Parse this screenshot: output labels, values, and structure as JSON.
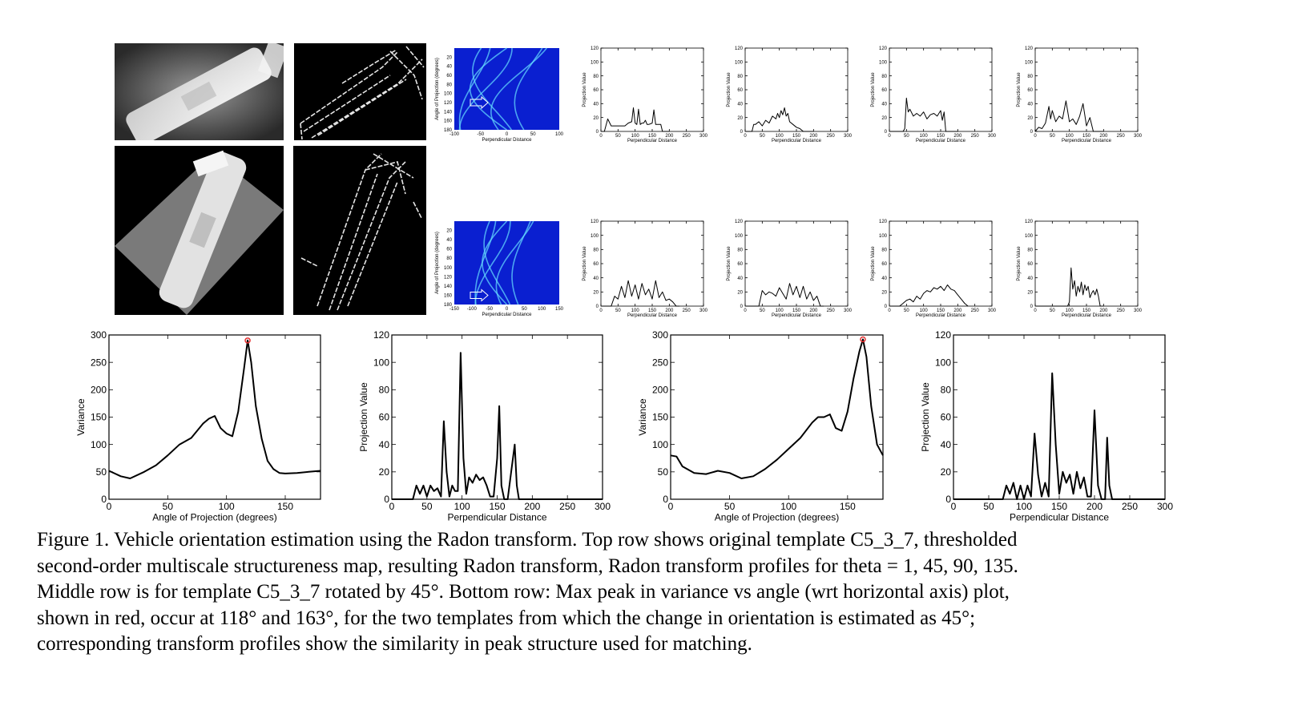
{
  "figure": {
    "caption_lines": [
      "Figure 1. Vehicle orientation estimation using the Radon transform. Top row shows original template C5_3_7, thresholded",
      "second-order multiscale structureness map, resulting Radon transform, Radon transform profiles for theta = 1, 45, 90, 135.",
      "Middle row is for template C5_3_7 rotated by 45°. Bottom row: Max peak in variance vs angle (wrt horizontal axis) plot,",
      "shown in red, occur at 118° and 163°, for the two templates from which the change in orientation is estimated as 45°;",
      "corresponding transform profiles show the similarity in peak structure used for matching."
    ]
  },
  "colors": {
    "peak_marker": "#e53030",
    "heatmap_bg": "#0a1fd0",
    "heatmap_ridge": "#66e0ff"
  },
  "chart_data": [
    {
      "id": "radon-top",
      "type": "heatmap",
      "xlabel": "Perpendicular Distance",
      "ylabel": "Angle of Projection (degrees)",
      "xticks": [
        "-100",
        "-50",
        "0",
        "50",
        "100"
      ],
      "yticks": [
        "20",
        "40",
        "60",
        "80",
        "100",
        "120",
        "140",
        "160",
        "180"
      ],
      "xlim": [
        -100,
        100
      ],
      "ylim": [
        0,
        180
      ]
    },
    {
      "id": "radon-mid",
      "type": "heatmap",
      "xlabel": "Perpendicular Distance",
      "ylabel": "Angle of Projection (degrees)",
      "xticks": [
        "-150",
        "-100",
        "-50",
        "0",
        "50",
        "100",
        "150"
      ],
      "yticks": [
        "20",
        "40",
        "60",
        "80",
        "100",
        "120",
        "140",
        "160",
        "180"
      ],
      "xlim": [
        -150,
        150
      ],
      "ylim": [
        0,
        180
      ]
    },
    {
      "id": "p-top-1",
      "type": "line",
      "xlabel": "Perpendicular Distance",
      "ylabel": "Projection Value",
      "xlim": [
        0,
        300
      ],
      "ylim": [
        0,
        120
      ],
      "xticks": [
        "0",
        "50",
        "100",
        "150",
        "200",
        "250",
        "300"
      ],
      "yticks": [
        "0",
        "20",
        "40",
        "60",
        "80",
        "100",
        "120"
      ],
      "x": [
        0,
        10,
        20,
        30,
        40,
        50,
        60,
        70,
        80,
        90,
        95,
        100,
        105,
        110,
        115,
        120,
        125,
        130,
        135,
        140,
        150,
        155,
        160,
        165,
        170,
        175,
        180,
        190,
        200
      ],
      "y": [
        0,
        0,
        18,
        8,
        8,
        8,
        8,
        8,
        12,
        14,
        34,
        12,
        10,
        32,
        10,
        12,
        12,
        16,
        10,
        10,
        12,
        31,
        10,
        10,
        10,
        10,
        0,
        0,
        0
      ]
    },
    {
      "id": "p-top-2",
      "type": "line",
      "xlabel": "Perpendicular Distance",
      "ylabel": "Projection Value",
      "xlim": [
        0,
        300
      ],
      "ylim": [
        0,
        120
      ],
      "xticks": [
        "0",
        "50",
        "100",
        "150",
        "200",
        "250",
        "300"
      ],
      "yticks": [
        "0",
        "20",
        "40",
        "60",
        "80",
        "100",
        "120"
      ],
      "x": [
        0,
        20,
        25,
        30,
        40,
        50,
        60,
        70,
        80,
        90,
        95,
        100,
        105,
        110,
        115,
        120,
        125,
        130,
        140,
        150,
        160,
        170,
        180,
        190,
        200
      ],
      "y": [
        0,
        0,
        10,
        10,
        14,
        8,
        16,
        12,
        22,
        18,
        26,
        20,
        30,
        24,
        34,
        22,
        26,
        14,
        10,
        6,
        4,
        0,
        0,
        0,
        0
      ]
    },
    {
      "id": "p-top-3",
      "type": "line",
      "xlabel": "Perpendicular Distance",
      "ylabel": "Projection Value",
      "xlim": [
        0,
        300
      ],
      "ylim": [
        0,
        120
      ],
      "xticks": [
        "0",
        "50",
        "100",
        "150",
        "200",
        "250",
        "300"
      ],
      "yticks": [
        "0",
        "20",
        "40",
        "60",
        "80",
        "100",
        "120"
      ],
      "x": [
        0,
        40,
        45,
        50,
        55,
        60,
        70,
        80,
        90,
        100,
        110,
        120,
        130,
        140,
        150,
        155,
        160,
        165,
        170,
        180,
        190,
        200
      ],
      "y": [
        0,
        0,
        4,
        48,
        28,
        32,
        22,
        26,
        22,
        28,
        18,
        24,
        26,
        22,
        30,
        16,
        28,
        0,
        0,
        0,
        0,
        0
      ]
    },
    {
      "id": "p-top-4",
      "type": "line",
      "xlabel": "Perpendicular Distance",
      "ylabel": "Projection Value",
      "xlim": [
        0,
        300
      ],
      "ylim": [
        0,
        120
      ],
      "xticks": [
        "0",
        "50",
        "100",
        "150",
        "200",
        "250",
        "300"
      ],
      "yticks": [
        "0",
        "20",
        "40",
        "60",
        "80",
        "100",
        "120"
      ],
      "x": [
        0,
        10,
        20,
        30,
        40,
        45,
        50,
        60,
        70,
        80,
        90,
        100,
        110,
        120,
        130,
        140,
        150,
        160,
        170,
        180,
        190,
        200
      ],
      "y": [
        0,
        6,
        4,
        12,
        36,
        18,
        30,
        14,
        22,
        18,
        44,
        14,
        18,
        10,
        22,
        40,
        8,
        20,
        0,
        0,
        0,
        0
      ]
    },
    {
      "id": "p-mid-1",
      "type": "line",
      "xlabel": "Perpendicular Distance",
      "ylabel": "Projection Value",
      "xlim": [
        0,
        300
      ],
      "ylim": [
        0,
        120
      ],
      "xticks": [
        "0",
        "50",
        "100",
        "150",
        "200",
        "250",
        "300"
      ],
      "yticks": [
        "0",
        "20",
        "40",
        "60",
        "80",
        "100",
        "120"
      ],
      "x": [
        0,
        30,
        40,
        50,
        60,
        70,
        80,
        90,
        100,
        110,
        120,
        130,
        140,
        150,
        160,
        170,
        180,
        190,
        200,
        210,
        220,
        230
      ],
      "y": [
        0,
        0,
        14,
        10,
        28,
        12,
        36,
        14,
        30,
        10,
        32,
        16,
        24,
        10,
        36,
        12,
        20,
        8,
        10,
        6,
        0,
        0
      ]
    },
    {
      "id": "p-mid-2",
      "type": "line",
      "xlabel": "Perpendicular Distance",
      "ylabel": "Projection Value",
      "xlim": [
        0,
        300
      ],
      "ylim": [
        0,
        120
      ],
      "xticks": [
        "0",
        "50",
        "100",
        "150",
        "200",
        "250",
        "300"
      ],
      "yticks": [
        "0",
        "20",
        "40",
        "60",
        "80",
        "100",
        "120"
      ],
      "x": [
        0,
        40,
        50,
        60,
        70,
        80,
        90,
        100,
        110,
        120,
        130,
        140,
        150,
        160,
        170,
        180,
        190,
        200,
        210,
        220,
        230
      ],
      "y": [
        0,
        0,
        22,
        16,
        20,
        18,
        14,
        26,
        18,
        10,
        32,
        16,
        28,
        12,
        28,
        10,
        20,
        8,
        14,
        0,
        0
      ]
    },
    {
      "id": "p-mid-3",
      "type": "line",
      "xlabel": "Perpendicular Distance",
      "ylabel": "Projection Value",
      "xlim": [
        0,
        300
      ],
      "ylim": [
        0,
        120
      ],
      "xticks": [
        "0",
        "50",
        "100",
        "150",
        "200",
        "250",
        "300"
      ],
      "yticks": [
        "0",
        "20",
        "40",
        "60",
        "80",
        "100",
        "120"
      ],
      "x": [
        0,
        30,
        40,
        50,
        60,
        70,
        80,
        90,
        100,
        110,
        120,
        130,
        140,
        150,
        160,
        170,
        180,
        190,
        200,
        210,
        220,
        230
      ],
      "y": [
        0,
        0,
        4,
        8,
        10,
        6,
        14,
        10,
        18,
        22,
        20,
        26,
        24,
        28,
        22,
        30,
        24,
        22,
        16,
        10,
        4,
        0
      ]
    },
    {
      "id": "p-mid-4",
      "type": "line",
      "xlabel": "Perpendicular Distance",
      "ylabel": "Projection Value",
      "xlim": [
        0,
        300
      ],
      "ylim": [
        0,
        120
      ],
      "xticks": [
        "0",
        "50",
        "100",
        "150",
        "200",
        "250",
        "300"
      ],
      "yticks": [
        "0",
        "20",
        "40",
        "60",
        "80",
        "100",
        "120"
      ],
      "x": [
        0,
        95,
        100,
        105,
        110,
        115,
        120,
        125,
        130,
        135,
        140,
        145,
        150,
        155,
        160,
        165,
        170,
        175,
        180,
        185,
        190,
        200
      ],
      "y": [
        0,
        0,
        6,
        54,
        24,
        36,
        14,
        28,
        20,
        34,
        16,
        30,
        22,
        28,
        12,
        18,
        22,
        16,
        24,
        14,
        0,
        0
      ]
    },
    {
      "id": "var-1",
      "type": "line",
      "xlabel": "Angle of Projection (degrees)",
      "ylabel": "Variance",
      "xlim": [
        0,
        180
      ],
      "ylim": [
        0,
        300
      ],
      "xticks": [
        "0",
        "50",
        "100",
        "150"
      ],
      "yticks": [
        "0",
        "50",
        "100",
        "150",
        "200",
        "250",
        "300"
      ],
      "x": [
        0,
        10,
        18,
        30,
        40,
        50,
        60,
        70,
        80,
        85,
        90,
        95,
        100,
        105,
        110,
        115,
        118,
        121,
        125,
        130,
        135,
        140,
        145,
        150,
        160,
        170,
        180
      ],
      "y": [
        52,
        42,
        38,
        50,
        62,
        80,
        100,
        112,
        138,
        147,
        152,
        130,
        120,
        115,
        160,
        240,
        290,
        250,
        170,
        110,
        70,
        55,
        48,
        47,
        48,
        50,
        52
      ],
      "peak": {
        "x": 118,
        "y": 290
      }
    },
    {
      "id": "prof-1",
      "type": "line",
      "xlabel": "Perpendicular Distance",
      "ylabel": "Projection Value",
      "xlim": [
        0,
        300
      ],
      "ylim": [
        0,
        120
      ],
      "xticks": [
        "0",
        "50",
        "100",
        "150",
        "200",
        "250",
        "300"
      ],
      "yticks": [
        "0",
        "20",
        "40",
        "60",
        "80",
        "100",
        "120"
      ],
      "x": [
        0,
        30,
        35,
        40,
        45,
        50,
        55,
        60,
        65,
        70,
        74,
        78,
        82,
        86,
        90,
        94,
        98,
        102,
        106,
        110,
        115,
        120,
        125,
        130,
        135,
        140,
        145,
        150,
        153,
        156,
        160,
        165,
        170,
        175,
        178,
        181,
        185,
        300
      ],
      "y": [
        0,
        0,
        10,
        4,
        10,
        2,
        10,
        6,
        8,
        2,
        57,
        20,
        2,
        10,
        6,
        6,
        107,
        30,
        4,
        16,
        12,
        18,
        14,
        16,
        10,
        2,
        2,
        30,
        68,
        10,
        0,
        0,
        20,
        40,
        10,
        0,
        0,
        0
      ]
    },
    {
      "id": "var-2",
      "type": "line",
      "xlabel": "Angle of Projection (degrees)",
      "ylabel": "Variance",
      "xlim": [
        0,
        180
      ],
      "ylim": [
        0,
        300
      ],
      "xticks": [
        "0",
        "50",
        "100",
        "150"
      ],
      "yticks": [
        "0",
        "50",
        "100",
        "150",
        "200",
        "250",
        "300"
      ],
      "x": [
        0,
        5,
        10,
        20,
        30,
        40,
        50,
        60,
        70,
        80,
        90,
        100,
        110,
        120,
        125,
        130,
        135,
        140,
        145,
        150,
        155,
        160,
        163,
        166,
        170,
        175,
        180
      ],
      "y": [
        80,
        78,
        60,
        48,
        46,
        52,
        48,
        38,
        42,
        55,
        72,
        92,
        112,
        140,
        150,
        150,
        155,
        130,
        125,
        160,
        220,
        270,
        292,
        260,
        170,
        100,
        80
      ],
      "peak": {
        "x": 163,
        "y": 292
      }
    },
    {
      "id": "prof-2",
      "type": "line",
      "xlabel": "Perpendicular Distance",
      "ylabel": "Projection Value",
      "xlim": [
        0,
        300
      ],
      "ylim": [
        0,
        120
      ],
      "xticks": [
        "0",
        "50",
        "100",
        "150",
        "200",
        "250",
        "300"
      ],
      "yticks": [
        "0",
        "20",
        "40",
        "60",
        "80",
        "100",
        "120"
      ],
      "x": [
        0,
        70,
        75,
        80,
        85,
        90,
        95,
        100,
        105,
        110,
        115,
        120,
        125,
        130,
        135,
        140,
        145,
        150,
        155,
        160,
        165,
        170,
        175,
        180,
        185,
        190,
        195,
        200,
        205,
        210,
        215,
        218,
        221,
        225,
        300
      ],
      "y": [
        0,
        0,
        10,
        4,
        12,
        0,
        10,
        0,
        10,
        2,
        48,
        18,
        2,
        12,
        2,
        92,
        40,
        4,
        20,
        12,
        18,
        4,
        20,
        8,
        16,
        2,
        2,
        65,
        10,
        0,
        0,
        45,
        10,
        0,
        0
      ]
    }
  ]
}
